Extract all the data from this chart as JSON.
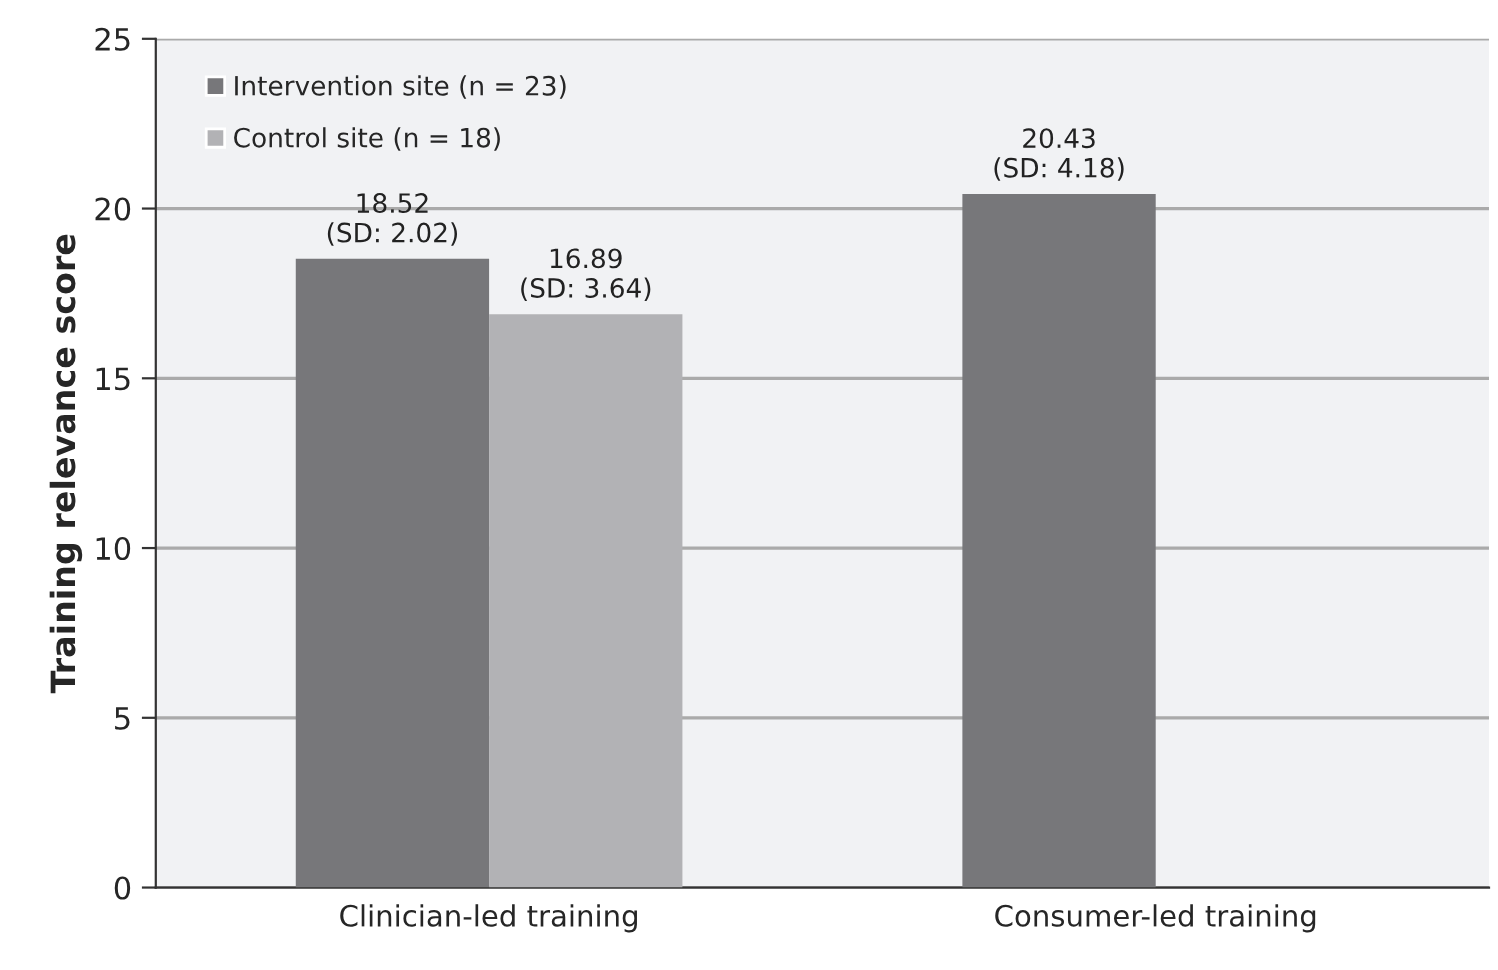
{
  "chart_data": {
    "type": "bar",
    "ylabel": "Training relevance score",
    "categories": [
      "Clinician-led training",
      "Consumer-led training"
    ],
    "series": [
      {
        "name": "Intervention site (n = 23)",
        "color": "#77777a",
        "values": [
          18.52,
          20.43
        ],
        "value_labels": [
          "18.52\n(SD: 2.02)",
          "20.43\n(SD: 4.18)"
        ]
      },
      {
        "name": "Control site (n = 18)",
        "color": "#b2b2b5",
        "values": [
          16.89,
          null
        ],
        "value_labels": [
          "16.89\n(SD: 3.64)",
          null
        ]
      }
    ],
    "ylim": [
      0,
      25
    ],
    "yticks": [
      0,
      5,
      10,
      15,
      20,
      25
    ],
    "grid": "y",
    "legend": "top left"
  }
}
